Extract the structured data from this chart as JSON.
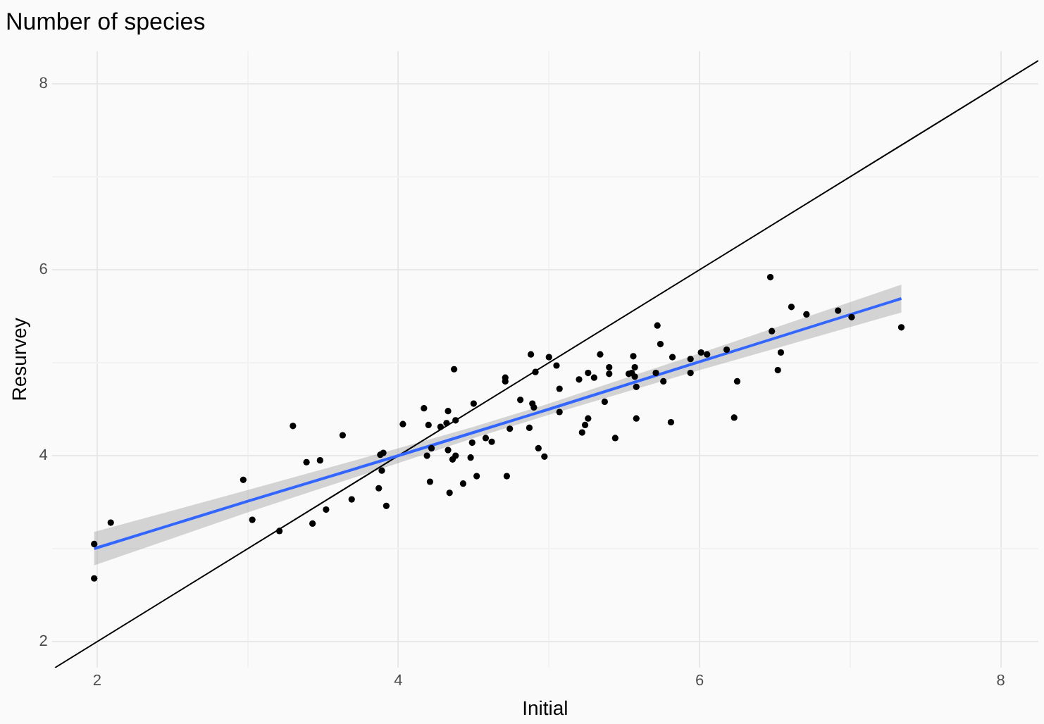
{
  "chart_data": {
    "type": "scatter",
    "title": "Number of species",
    "xlabel": "Initial",
    "ylabel": "Resurvey",
    "xlim": [
      1.7,
      8.25
    ],
    "ylim": [
      1.72,
      8.35
    ],
    "xticks": [
      2,
      {
        "value": 3,
        "label": null
      },
      4,
      {
        "value": 5,
        "label": null
      },
      6,
      {
        "value": 7,
        "label": null
      },
      8
    ],
    "yticks": [
      2,
      {
        "value": 3,
        "label": null
      },
      4,
      {
        "value": 5,
        "label": null
      },
      6,
      {
        "value": 7,
        "label": null
      },
      8
    ],
    "grid": true,
    "legend": false,
    "series": [
      {
        "marker": "circle",
        "color": "#000000",
        "x": [
          1.98,
          1.98,
          2.09,
          2.97,
          3.03,
          3.3,
          3.39,
          3.48,
          3.63,
          3.21,
          3.43,
          3.52,
          3.69,
          3.87,
          3.92,
          3.89,
          3.88,
          3.9,
          4.03,
          4.17,
          4.2,
          4.19,
          4.21,
          4.22,
          4.28,
          4.32,
          4.33,
          4.37,
          4.38,
          4.33,
          4.38,
          4.36,
          4.34,
          4.43,
          4.48,
          4.49,
          4.5,
          4.52,
          4.58,
          4.62,
          4.71,
          4.71,
          4.72,
          4.74,
          4.81,
          4.87,
          4.88,
          4.91,
          4.89,
          4.9,
          4.93,
          4.97,
          5.0,
          5.05,
          5.07,
          5.07,
          5.2,
          5.22,
          5.24,
          5.26,
          5.26,
          5.3,
          5.34,
          5.37,
          5.4,
          5.4,
          5.44,
          5.53,
          5.55,
          5.57,
          5.56,
          5.57,
          5.58,
          5.58,
          5.74,
          5.71,
          5.76,
          5.72,
          5.82,
          5.81,
          5.94,
          5.94,
          6.01,
          6.05,
          6.18,
          6.23,
          6.25,
          6.47,
          6.48,
          6.54,
          6.52,
          6.61,
          6.71,
          6.92,
          7.01,
          7.34
        ],
        "values": [
          3.05,
          2.68,
          3.28,
          3.74,
          3.31,
          4.32,
          3.93,
          3.95,
          4.22,
          3.19,
          3.27,
          3.42,
          3.53,
          3.65,
          3.46,
          3.84,
          4.01,
          4.03,
          4.34,
          4.51,
          4.33,
          4.0,
          3.72,
          4.08,
          4.31,
          4.35,
          4.48,
          4.93,
          4.38,
          4.06,
          4.0,
          3.96,
          3.6,
          3.7,
          3.98,
          4.14,
          4.56,
          3.78,
          4.19,
          4.15,
          4.84,
          4.8,
          3.78,
          4.29,
          4.6,
          4.3,
          5.09,
          4.9,
          4.56,
          4.52,
          4.08,
          3.99,
          5.06,
          4.97,
          4.72,
          4.47,
          4.82,
          4.25,
          4.33,
          4.4,
          4.89,
          4.84,
          5.09,
          4.58,
          4.95,
          4.88,
          4.19,
          4.88,
          4.89,
          4.85,
          5.07,
          4.95,
          4.74,
          4.4,
          5.2,
          4.89,
          4.8,
          5.4,
          5.06,
          4.36,
          5.04,
          4.89,
          5.11,
          5.09,
          5.14,
          4.41,
          4.8,
          5.92,
          5.34,
          5.11,
          4.92,
          5.6,
          5.52,
          5.56,
          5.49,
          5.38
        ]
      },
      {
        "type": "line",
        "color": "#3366ff",
        "x": [
          1.98,
          3,
          4,
          4.5,
          5,
          6,
          7.34
        ],
        "values": [
          3.0,
          3.51,
          4.0,
          4.25,
          4.5,
          5.01,
          5.69
        ],
        "lower": [
          2.82,
          3.39,
          3.92,
          4.19,
          4.44,
          4.92,
          5.54
        ],
        "upper": [
          3.18,
          3.63,
          4.08,
          4.31,
          4.56,
          5.1,
          5.84
        ]
      },
      {
        "type": "line",
        "color": "#000000",
        "x": [
          1.72,
          8.25
        ],
        "values": [
          1.72,
          8.25
        ]
      }
    ]
  }
}
